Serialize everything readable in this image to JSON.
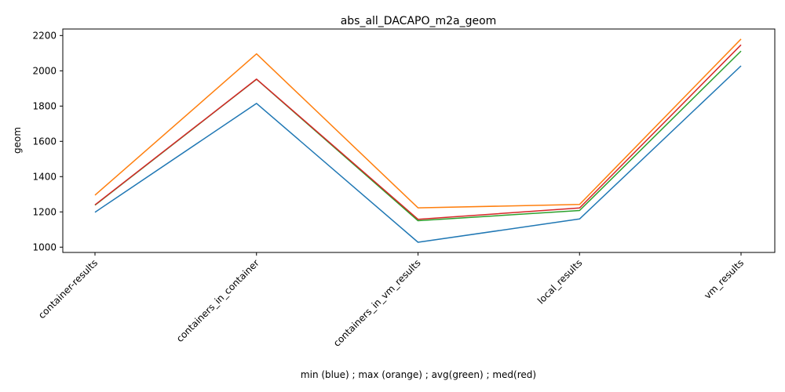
{
  "chart_data": {
    "type": "line",
    "title": "abs_all_DACAPO_m2a_geom",
    "xlabel": "min (blue) ; max (orange) ; avg(green) ; med(red)",
    "ylabel": "geom",
    "categories": [
      "container-results",
      "containers_in_container",
      "containers_in_vm_results",
      "local_results",
      "vm_results"
    ],
    "ylim": [
      970,
      2237
    ],
    "yticks": [
      1000,
      1200,
      1400,
      1600,
      1800,
      2000,
      2200
    ],
    "grid": false,
    "series": [
      {
        "color": "#1f77b4",
        "values": [
          1198,
          1815,
          1028,
          1160,
          2028
        ]
      },
      {
        "color": "#ff7f0e",
        "values": [
          1295,
          2096,
          1223,
          1242,
          2180
        ]
      },
      {
        "color": "#2ca02c",
        "values": [
          1238,
          1952,
          1150,
          1208,
          2112
        ]
      },
      {
        "color": "#d62728",
        "values": [
          1240,
          1953,
          1158,
          1222,
          2147
        ]
      }
    ]
  }
}
